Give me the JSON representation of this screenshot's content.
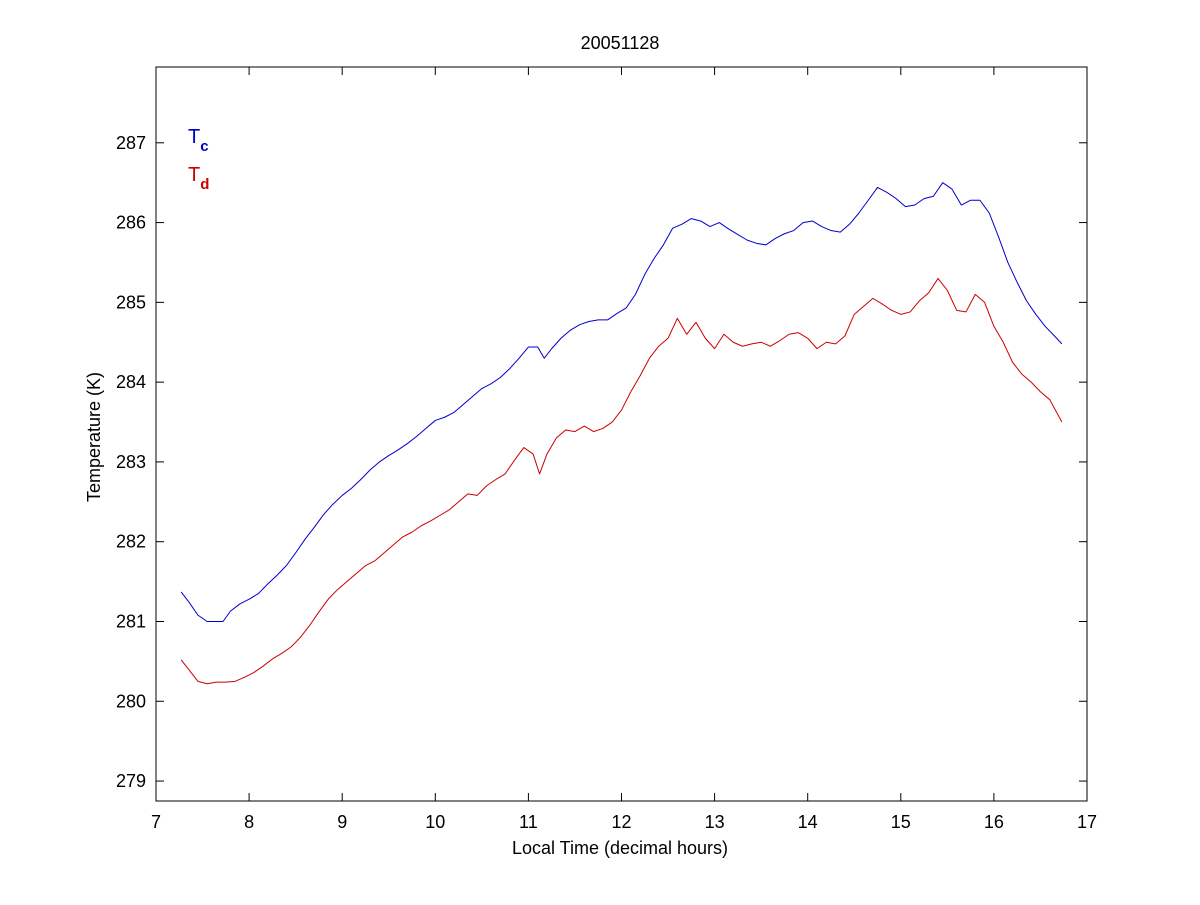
{
  "chart_data": {
    "type": "line",
    "title": "20051128",
    "xlabel": "Local Time (decimal hours)",
    "ylabel": "Temperature (K)",
    "xlim": [
      7,
      17
    ],
    "ylim": [
      278.75,
      287.95
    ],
    "xticks": [
      7,
      8,
      9,
      10,
      11,
      12,
      13,
      14,
      15,
      16,
      17
    ],
    "yticks": [
      279,
      280,
      281,
      282,
      283,
      284,
      285,
      286,
      287
    ],
    "grid": false,
    "legend_position": "top-left",
    "series": [
      {
        "name": "T",
        "subscript": "c",
        "color": "#0000cc",
        "points": [
          [
            7.27,
            281.37
          ],
          [
            7.35,
            281.25
          ],
          [
            7.45,
            281.08
          ],
          [
            7.55,
            281.0
          ],
          [
            7.62,
            281.0
          ],
          [
            7.72,
            281.0
          ],
          [
            7.8,
            281.13
          ],
          [
            7.9,
            281.22
          ],
          [
            8.0,
            281.28
          ],
          [
            8.1,
            281.35
          ],
          [
            8.2,
            281.47
          ],
          [
            8.3,
            281.58
          ],
          [
            8.4,
            281.7
          ],
          [
            8.5,
            281.86
          ],
          [
            8.6,
            282.03
          ],
          [
            8.7,
            282.18
          ],
          [
            8.8,
            282.34
          ],
          [
            8.9,
            282.47
          ],
          [
            9.0,
            282.58
          ],
          [
            9.1,
            282.67
          ],
          [
            9.2,
            282.78
          ],
          [
            9.3,
            282.9
          ],
          [
            9.4,
            283.0
          ],
          [
            9.5,
            283.08
          ],
          [
            9.6,
            283.15
          ],
          [
            9.7,
            283.23
          ],
          [
            9.8,
            283.32
          ],
          [
            9.9,
            283.42
          ],
          [
            10.0,
            283.52
          ],
          [
            10.1,
            283.56
          ],
          [
            10.2,
            283.62
          ],
          [
            10.3,
            283.72
          ],
          [
            10.4,
            283.82
          ],
          [
            10.5,
            283.92
          ],
          [
            10.6,
            283.98
          ],
          [
            10.7,
            284.06
          ],
          [
            10.8,
            284.17
          ],
          [
            10.9,
            284.3
          ],
          [
            11.0,
            284.44
          ],
          [
            11.1,
            284.44
          ],
          [
            11.17,
            284.3
          ],
          [
            11.25,
            284.42
          ],
          [
            11.35,
            284.55
          ],
          [
            11.45,
            284.65
          ],
          [
            11.55,
            284.72
          ],
          [
            11.65,
            284.76
          ],
          [
            11.75,
            284.78
          ],
          [
            11.85,
            284.78
          ],
          [
            11.95,
            284.86
          ],
          [
            12.05,
            284.93
          ],
          [
            12.15,
            285.1
          ],
          [
            12.25,
            285.35
          ],
          [
            12.35,
            285.55
          ],
          [
            12.45,
            285.72
          ],
          [
            12.55,
            285.93
          ],
          [
            12.65,
            285.98
          ],
          [
            12.75,
            286.05
          ],
          [
            12.85,
            286.02
          ],
          [
            12.95,
            285.95
          ],
          [
            13.05,
            286.0
          ],
          [
            13.15,
            285.92
          ],
          [
            13.25,
            285.85
          ],
          [
            13.35,
            285.78
          ],
          [
            13.45,
            285.74
          ],
          [
            13.55,
            285.72
          ],
          [
            13.65,
            285.8
          ],
          [
            13.75,
            285.86
          ],
          [
            13.85,
            285.9
          ],
          [
            13.95,
            286.0
          ],
          [
            14.05,
            286.02
          ],
          [
            14.15,
            285.95
          ],
          [
            14.25,
            285.9
          ],
          [
            14.35,
            285.88
          ],
          [
            14.45,
            285.98
          ],
          [
            14.55,
            286.12
          ],
          [
            14.65,
            286.28
          ],
          [
            14.75,
            286.44
          ],
          [
            14.85,
            286.38
          ],
          [
            14.95,
            286.3
          ],
          [
            15.05,
            286.2
          ],
          [
            15.15,
            286.22
          ],
          [
            15.25,
            286.3
          ],
          [
            15.35,
            286.33
          ],
          [
            15.45,
            286.5
          ],
          [
            15.55,
            286.42
          ],
          [
            15.65,
            286.22
          ],
          [
            15.75,
            286.28
          ],
          [
            15.85,
            286.28
          ],
          [
            15.95,
            286.12
          ],
          [
            16.05,
            285.82
          ],
          [
            16.15,
            285.5
          ],
          [
            16.25,
            285.25
          ],
          [
            16.35,
            285.02
          ],
          [
            16.45,
            284.85
          ],
          [
            16.55,
            284.7
          ],
          [
            16.65,
            284.58
          ],
          [
            16.73,
            284.48
          ]
        ]
      },
      {
        "name": "T",
        "subscript": "d",
        "color": "#cc0000",
        "points": [
          [
            7.27,
            280.52
          ],
          [
            7.35,
            280.4
          ],
          [
            7.45,
            280.25
          ],
          [
            7.55,
            280.22
          ],
          [
            7.65,
            280.24
          ],
          [
            7.75,
            280.24
          ],
          [
            7.85,
            280.25
          ],
          [
            7.95,
            280.3
          ],
          [
            8.05,
            280.36
          ],
          [
            8.15,
            280.44
          ],
          [
            8.25,
            280.53
          ],
          [
            8.35,
            280.6
          ],
          [
            8.45,
            280.68
          ],
          [
            8.55,
            280.8
          ],
          [
            8.65,
            280.95
          ],
          [
            8.75,
            281.12
          ],
          [
            8.85,
            281.28
          ],
          [
            8.95,
            281.4
          ],
          [
            9.05,
            281.5
          ],
          [
            9.15,
            281.6
          ],
          [
            9.25,
            281.7
          ],
          [
            9.35,
            281.76
          ],
          [
            9.45,
            281.86
          ],
          [
            9.55,
            281.96
          ],
          [
            9.65,
            282.06
          ],
          [
            9.75,
            282.12
          ],
          [
            9.85,
            282.2
          ],
          [
            9.95,
            282.26
          ],
          [
            10.05,
            282.33
          ],
          [
            10.15,
            282.4
          ],
          [
            10.25,
            282.5
          ],
          [
            10.35,
            282.6
          ],
          [
            10.45,
            282.58
          ],
          [
            10.55,
            282.7
          ],
          [
            10.65,
            282.78
          ],
          [
            10.75,
            282.85
          ],
          [
            10.85,
            283.02
          ],
          [
            10.95,
            283.18
          ],
          [
            11.05,
            283.1
          ],
          [
            11.12,
            282.85
          ],
          [
            11.2,
            283.1
          ],
          [
            11.3,
            283.3
          ],
          [
            11.4,
            283.4
          ],
          [
            11.5,
            283.38
          ],
          [
            11.6,
            283.45
          ],
          [
            11.7,
            283.38
          ],
          [
            11.8,
            283.42
          ],
          [
            11.9,
            283.5
          ],
          [
            12.0,
            283.65
          ],
          [
            12.1,
            283.88
          ],
          [
            12.2,
            284.08
          ],
          [
            12.3,
            284.3
          ],
          [
            12.4,
            284.45
          ],
          [
            12.5,
            284.55
          ],
          [
            12.6,
            284.8
          ],
          [
            12.7,
            284.6
          ],
          [
            12.8,
            284.75
          ],
          [
            12.9,
            284.55
          ],
          [
            13.0,
            284.42
          ],
          [
            13.1,
            284.6
          ],
          [
            13.2,
            284.5
          ],
          [
            13.3,
            284.45
          ],
          [
            13.4,
            284.48
          ],
          [
            13.5,
            284.5
          ],
          [
            13.6,
            284.45
          ],
          [
            13.7,
            284.52
          ],
          [
            13.8,
            284.6
          ],
          [
            13.9,
            284.62
          ],
          [
            14.0,
            284.55
          ],
          [
            14.1,
            284.42
          ],
          [
            14.2,
            284.5
          ],
          [
            14.3,
            284.48
          ],
          [
            14.4,
            284.58
          ],
          [
            14.5,
            284.85
          ],
          [
            14.6,
            284.95
          ],
          [
            14.7,
            285.05
          ],
          [
            14.8,
            284.98
          ],
          [
            14.9,
            284.9
          ],
          [
            15.0,
            284.85
          ],
          [
            15.1,
            284.88
          ],
          [
            15.2,
            285.02
          ],
          [
            15.3,
            285.12
          ],
          [
            15.4,
            285.3
          ],
          [
            15.5,
            285.15
          ],
          [
            15.6,
            284.9
          ],
          [
            15.7,
            284.88
          ],
          [
            15.8,
            285.1
          ],
          [
            15.9,
            285.0
          ],
          [
            16.0,
            284.7
          ],
          [
            16.1,
            284.5
          ],
          [
            16.2,
            284.25
          ],
          [
            16.3,
            284.1
          ],
          [
            16.4,
            284.0
          ],
          [
            16.5,
            283.88
          ],
          [
            16.6,
            283.78
          ],
          [
            16.73,
            283.5
          ]
        ]
      }
    ]
  }
}
